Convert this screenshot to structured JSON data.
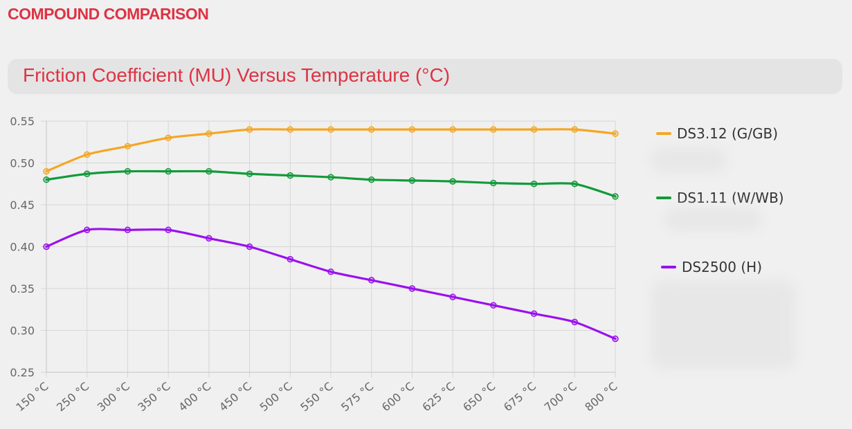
{
  "header": {
    "section_title": "COMPOUND COMPARISON",
    "chart_title": "Friction Coefficient (MU) Versus Temperature (°C)"
  },
  "colors": {
    "accent": "#dd3344",
    "title_bar": "#e4e4e4",
    "background": "#f0f0f0",
    "grid": "#d6d6d6",
    "tick_text": "#666666"
  },
  "chart_data": {
    "type": "line",
    "title": "Friction Coefficient (MU) Versus Temperature (°C)",
    "xlabel": "",
    "ylabel": "",
    "categories": [
      "150 °C",
      "250 °C",
      "300 °C",
      "350 °C",
      "400 °C",
      "450 °C",
      "500 °C",
      "550 °C",
      "575 °C",
      "600 °C",
      "625 °C",
      "650 °C",
      "675 °C",
      "700 °C",
      "800 °C"
    ],
    "ylim": [
      0.25,
      0.55
    ],
    "yticks": [
      "0.25",
      "0.30",
      "0.35",
      "0.40",
      "0.45",
      "0.50",
      "0.55"
    ],
    "grid": true,
    "legend_position": "right",
    "series": [
      {
        "name": "DS3.12 (G/GB)",
        "color": "#f5a623",
        "values": [
          0.49,
          0.51,
          0.52,
          0.53,
          0.535,
          0.54,
          0.54,
          0.54,
          0.54,
          0.54,
          0.54,
          0.54,
          0.54,
          0.54,
          0.535
        ]
      },
      {
        "name": "DS1.11 (W/WB)",
        "color": "#129a3a",
        "values": [
          0.48,
          0.487,
          0.49,
          0.49,
          0.49,
          0.487,
          0.485,
          0.483,
          0.48,
          0.479,
          0.478,
          0.476,
          0.475,
          0.475,
          0.46
        ]
      },
      {
        "name": "DS2500 (H)",
        "color": "#9b10ee",
        "values": [
          0.4,
          0.42,
          0.42,
          0.42,
          0.41,
          0.4,
          0.385,
          0.37,
          0.36,
          0.35,
          0.34,
          0.33,
          0.32,
          0.31,
          0.29
        ]
      }
    ]
  }
}
